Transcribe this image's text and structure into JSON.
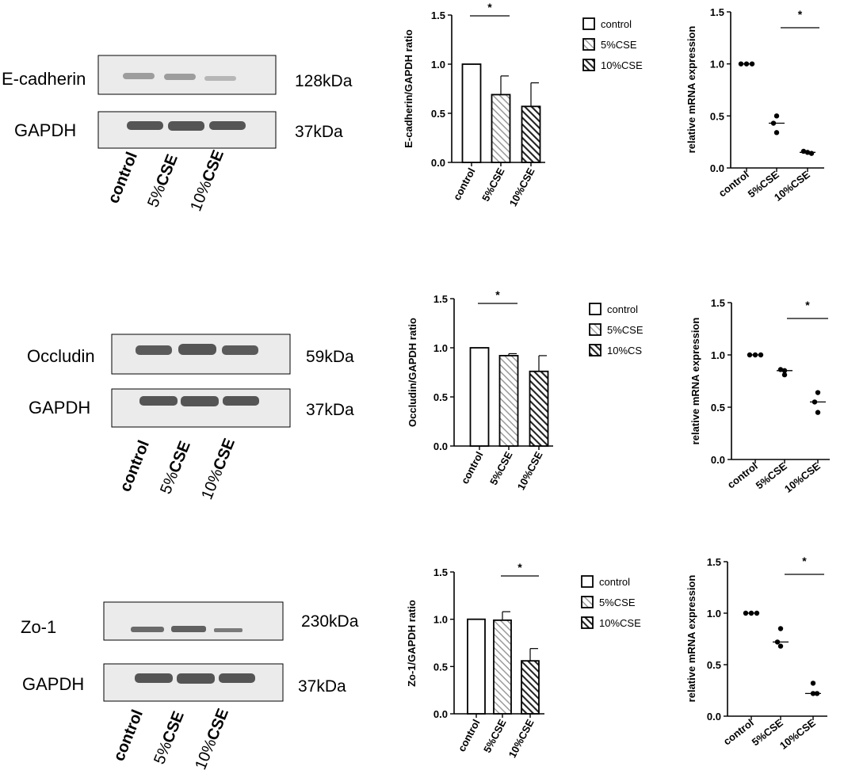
{
  "colors": {
    "axis": "#000000",
    "blot_bg": "#e9e9e9",
    "band": "#555555",
    "bar_fill": "#ffffff",
    "hatch_light": "#9a9a9a",
    "hatch_dark": "#222222"
  },
  "blots": [
    {
      "protein": "E-cadherin",
      "protein_kda": "128kDa",
      "gapdh": "GAPDH",
      "gapdh_kda": "37kDa",
      "lanes": [
        "control",
        "5%",
        "CSE",
        "10%",
        "CSE"
      ]
    },
    {
      "protein": "Occludin",
      "protein_kda": "59kDa",
      "gapdh": "GAPDH",
      "gapdh_kda": "37kDa",
      "lanes": [
        "control",
        "5%",
        "CSE",
        "10%",
        "CSE"
      ]
    },
    {
      "protein": "Zo-1",
      "protein_kda": "230kDa",
      "gapdh": "GAPDH",
      "gapdh_kda": "37kDa",
      "lanes": [
        "control",
        "5%",
        "CSE",
        "10%",
        "CSE"
      ]
    }
  ],
  "chart_data": [
    {
      "type": "bar",
      "ylabel": "E-cadherin/GAPDH ratio",
      "categories": [
        "control",
        "5%CSE",
        "10%CSE"
      ],
      "values": [
        1.0,
        0.69,
        0.57
      ],
      "errors": [
        0,
        0.19,
        0.24
      ],
      "ylim": [
        0,
        1.5
      ],
      "yticks": [
        "0.0",
        "0.5",
        "1.0",
        "1.5"
      ],
      "legend": [
        "control",
        "5%CSE",
        "10%CSE"
      ],
      "significance": "*"
    },
    {
      "type": "scatter",
      "ylabel": "relative mRNA expression",
      "categories": [
        "control",
        "5%CSE",
        "10%CSE"
      ],
      "points": [
        [
          1.0,
          1.0,
          1.0
        ],
        [
          0.5,
          0.43,
          0.34
        ],
        [
          0.16,
          0.15,
          0.14
        ]
      ],
      "medians": [
        1.0,
        0.43,
        0.15
      ],
      "ylim": [
        0,
        1.5
      ],
      "yticks": [
        "0.0",
        "0.5",
        "1.0",
        "1.5"
      ],
      "significance": "*"
    },
    {
      "type": "bar",
      "ylabel": "Occludin/GAPDH ratio",
      "categories": [
        "control",
        "5%CSE",
        "10%CSE"
      ],
      "values": [
        1.0,
        0.92,
        0.76
      ],
      "errors": [
        0,
        0.02,
        0.16
      ],
      "ylim": [
        0,
        1.5
      ],
      "yticks": [
        "0.0",
        "0.5",
        "1.0",
        "1.5"
      ],
      "legend": [
        "control",
        "5%CSE",
        "10%CS"
      ],
      "significance": "*"
    },
    {
      "type": "scatter",
      "ylabel": "relative mRNA expression",
      "categories": [
        "control",
        "5%CSE",
        "10%CSE"
      ],
      "points": [
        [
          1.0,
          1.0,
          1.0
        ],
        [
          0.86,
          0.85,
          0.81
        ],
        [
          0.64,
          0.55,
          0.45
        ]
      ],
      "medians": [
        1.0,
        0.85,
        0.55
      ],
      "ylim": [
        0,
        1.5
      ],
      "yticks": [
        "0.0",
        "0.5",
        "1.0",
        "1.5"
      ],
      "significance": "*"
    },
    {
      "type": "bar",
      "ylabel": "Zo-1/GAPDH ratio",
      "categories": [
        "control",
        "5%CSE",
        "10%CSE"
      ],
      "values": [
        1.0,
        0.99,
        0.56
      ],
      "errors": [
        0,
        0.09,
        0.13
      ],
      "ylim": [
        0,
        1.5
      ],
      "yticks": [
        "0.0",
        "0.5",
        "1.0",
        "1.5"
      ],
      "legend": [
        "control",
        "5%CSE",
        "10%CSE"
      ],
      "significance": "*"
    },
    {
      "type": "scatter",
      "ylabel": "relative mRNA expression",
      "categories": [
        "control",
        "5%CSE",
        "10%CSE"
      ],
      "points": [
        [
          1.0,
          1.0,
          1.0
        ],
        [
          0.85,
          0.72,
          0.68
        ],
        [
          0.32,
          0.22,
          0.22
        ]
      ],
      "medians": [
        1.0,
        0.72,
        0.22
      ],
      "ylim": [
        0,
        1.5
      ],
      "yticks": [
        "0.0",
        "0.5",
        "1.0",
        "1.5"
      ],
      "significance": "*"
    }
  ]
}
